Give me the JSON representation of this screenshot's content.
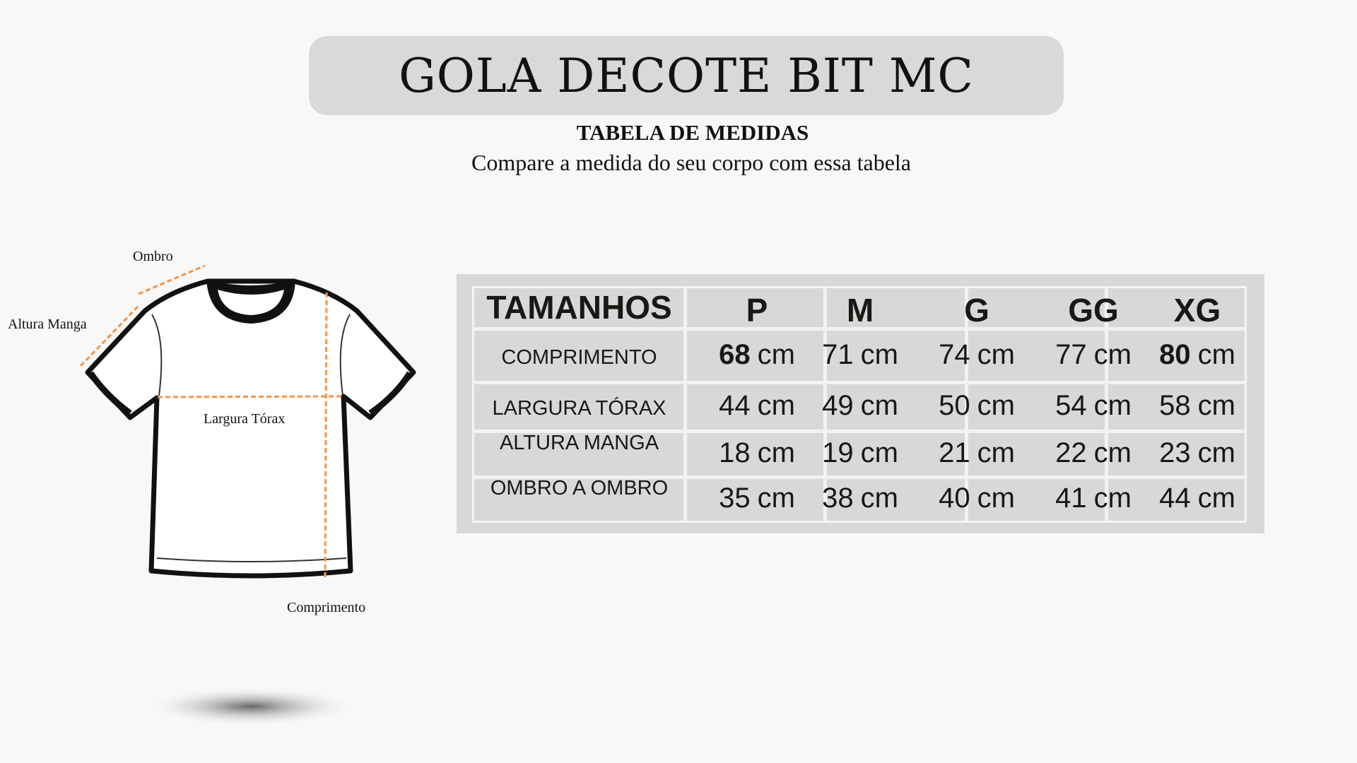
{
  "title": "GOLA DECOTE BIT MC",
  "subtitle": "TABELA DE MEDIDAS",
  "description": "Compare a medida do seu corpo com essa tabela",
  "diagram": {
    "labels": {
      "shoulder": "Ombro",
      "sleeve": "Altura Manga",
      "chest": "Largura Tórax",
      "length": "Comprimento"
    },
    "accent": "#f4954a"
  },
  "table": {
    "header": "TAMANHOS",
    "sizes": [
      "P",
      "M",
      "G",
      "GG",
      "XG"
    ],
    "rows": [
      {
        "label": "COMPRIMENTO",
        "values": [
          "68",
          "71",
          "74",
          "77",
          "80"
        ]
      },
      {
        "label": "LARGURA TÓRAX",
        "values": [
          "44",
          "49",
          "50",
          "54",
          "58"
        ]
      },
      {
        "label": "ALTURA MANGA",
        "values": [
          "18",
          "19",
          "21",
          "22",
          "23"
        ]
      },
      {
        "label": "OMBRO A OMBRO",
        "values": [
          "35",
          "38",
          "40",
          "41",
          "44"
        ]
      }
    ],
    "unit": "cm"
  }
}
